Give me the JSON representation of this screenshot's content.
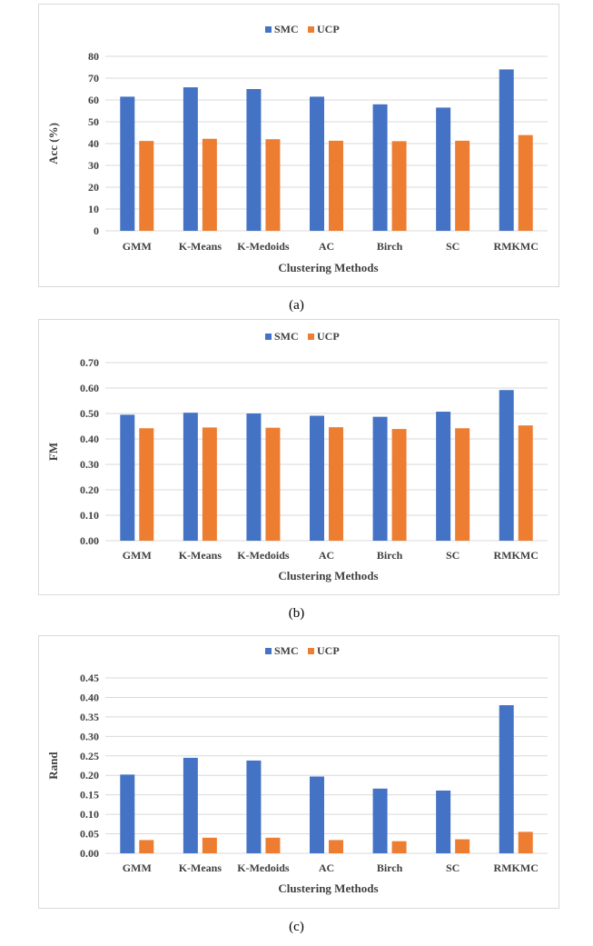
{
  "chart_data": [
    {
      "type": "bar",
      "categories": [
        "GMM",
        "K-Means",
        "K-Medoids",
        "AC",
        "Birch",
        "SC",
        "RMKMC"
      ],
      "series": [
        {
          "name": "SMC",
          "values": [
            61.5,
            65.8,
            65.0,
            61.5,
            58.0,
            56.5,
            74.0
          ]
        },
        {
          "name": "UCP",
          "values": [
            41.2,
            42.2,
            42.0,
            41.3,
            41.1,
            41.3,
            43.9
          ]
        }
      ],
      "title": "",
      "xlabel": "Clustering Methods",
      "ylabel": "Acc (%)",
      "ylim": [
        0,
        80
      ],
      "ystep": 10,
      "ydecimals": 0,
      "yticks": [
        "0",
        "10",
        "20",
        "30",
        "40",
        "50",
        "60",
        "70",
        "80"
      ],
      "legend": "top-center",
      "grid": true,
      "caption": "(a)"
    },
    {
      "type": "bar",
      "categories": [
        "GMM",
        "K-Means",
        "K-Medoids",
        "AC",
        "Birch",
        "SC",
        "RMKMC"
      ],
      "series": [
        {
          "name": "SMC",
          "values": [
            0.495,
            0.503,
            0.5,
            0.491,
            0.487,
            0.507,
            0.592
          ]
        },
        {
          "name": "UCP",
          "values": [
            0.442,
            0.445,
            0.444,
            0.446,
            0.439,
            0.442,
            0.453
          ]
        }
      ],
      "title": "",
      "xlabel": "Clustering Methods",
      "ylabel": "FM",
      "ylim": [
        0,
        0.7
      ],
      "ystep": 0.1,
      "ydecimals": 2,
      "yticks": [
        "0.00",
        "0.10",
        "0.20",
        "0.30",
        "0.40",
        "0.50",
        "0.60",
        "0.70"
      ],
      "legend": "top-center",
      "grid": true,
      "caption": "(b)"
    },
    {
      "type": "bar",
      "categories": [
        "GMM",
        "K-Means",
        "K-Medoids",
        "AC",
        "Birch",
        "SC",
        "RMKMC"
      ],
      "series": [
        {
          "name": "SMC",
          "values": [
            0.202,
            0.245,
            0.238,
            0.197,
            0.166,
            0.161,
            0.38
          ]
        },
        {
          "name": "UCP",
          "values": [
            0.034,
            0.04,
            0.04,
            0.034,
            0.031,
            0.036,
            0.055
          ]
        }
      ],
      "title": "",
      "xlabel": "Clustering Methods",
      "ylabel": "Rand",
      "ylim": [
        0,
        0.45
      ],
      "ystep": 0.05,
      "ydecimals": 2,
      "yticks": [
        "0.00",
        "0.05",
        "0.10",
        "0.15",
        "0.20",
        "0.25",
        "0.30",
        "0.35",
        "0.40",
        "0.45"
      ],
      "legend": "top-center",
      "grid": true,
      "caption": "(c)"
    }
  ],
  "colors": {
    "SMC": "#4472c4",
    "UCP": "#ed7d31",
    "grid": "#d9d9d9",
    "text": "#404040"
  }
}
